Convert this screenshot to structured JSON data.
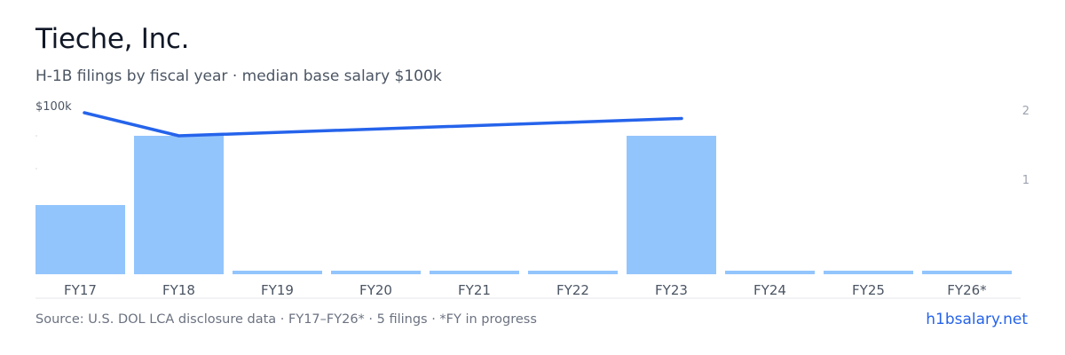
{
  "header": {
    "title": "Tieche, Inc.",
    "subtitle": "H-1B filings by fiscal year · median base salary $100k"
  },
  "footer": {
    "source": "Source: U.S. DOL LCA disclosure data · FY17–FY26* · 5 filings · *FY in progress",
    "brand": "h1bsalary.net"
  },
  "colors": {
    "bar": "#93c5fd",
    "line": "#2563eb",
    "axis": "#e5e7eb",
    "tick_text": "#9ca3af",
    "label_text": "#4b5563"
  },
  "chart_data": {
    "type": "bar",
    "categories": [
      "FY17",
      "FY18",
      "FY19",
      "FY20",
      "FY21",
      "FY22",
      "FY23",
      "FY24",
      "FY25",
      "FY26*"
    ],
    "series": [
      {
        "axis": "right",
        "kind": "bar",
        "values": [
          1,
          2,
          0,
          0,
          0,
          0,
          2,
          0,
          0,
          0
        ]
      },
      {
        "axis": "left",
        "kind": "line",
        "values": [
          100,
          96,
          null,
          null,
          null,
          null,
          99,
          null,
          null,
          null
        ]
      }
    ],
    "right_axis": {
      "ticks": [
        "2",
        "1"
      ],
      "ylim": [
        0,
        2.3
      ]
    },
    "left_axis": {
      "ticks": [
        "$100k"
      ]
    },
    "grid": false
  }
}
